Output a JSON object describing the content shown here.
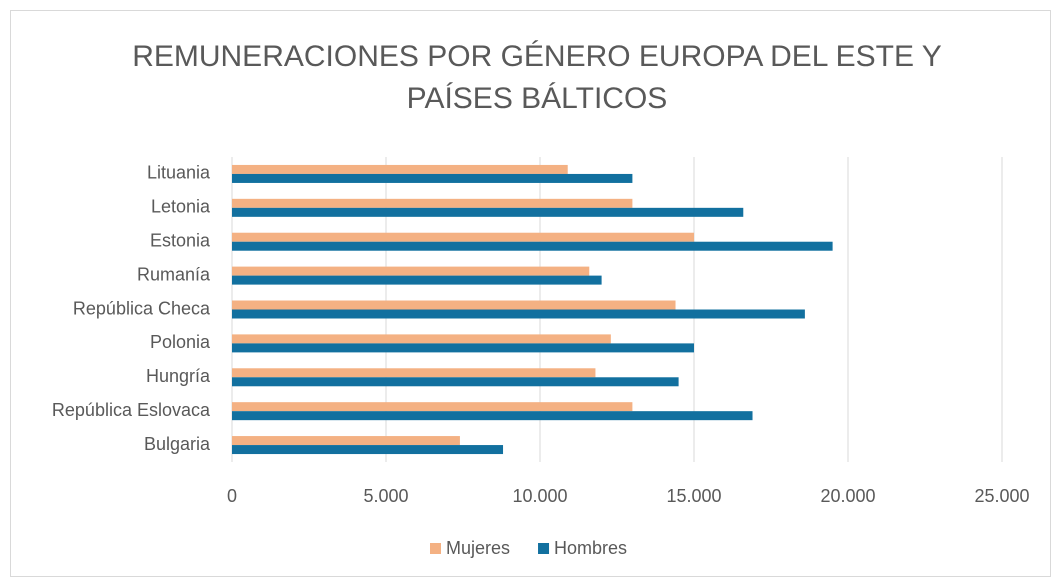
{
  "chart_data": {
    "type": "barh",
    "title": "REMUNERACIONES POR GÉNERO EUROPA DEL ESTE Y PAÍSES BÁLTICOS",
    "categories": [
      "Lituania",
      "Letonia",
      "Estonia",
      "Rumanía",
      "República Checa",
      "Polonia",
      "Hungría",
      "República Eslovaca",
      "Bulgaria"
    ],
    "series": [
      {
        "name": "Mujeres",
        "color": "#f4b183",
        "values": [
          10900,
          13000,
          15000,
          11600,
          14400,
          12300,
          11800,
          13000,
          7400
        ]
      },
      {
        "name": "Hombres",
        "color": "#12709f",
        "values": [
          13000,
          16600,
          19500,
          12000,
          18600,
          15000,
          14500,
          16900,
          8800
        ]
      }
    ],
    "xlim": [
      0,
      25000
    ],
    "xticks": [
      0,
      {
        "value": 5000,
        "label": "5.000"
      },
      {
        "value": 10000,
        "label": "10.000"
      },
      {
        "value": 15000,
        "label": "15.000"
      },
      {
        "value": 20000,
        "label": "20.000"
      },
      {
        "value": 25000,
        "label": "25.000"
      }
    ],
    "grid": true,
    "legend": "bottom"
  }
}
